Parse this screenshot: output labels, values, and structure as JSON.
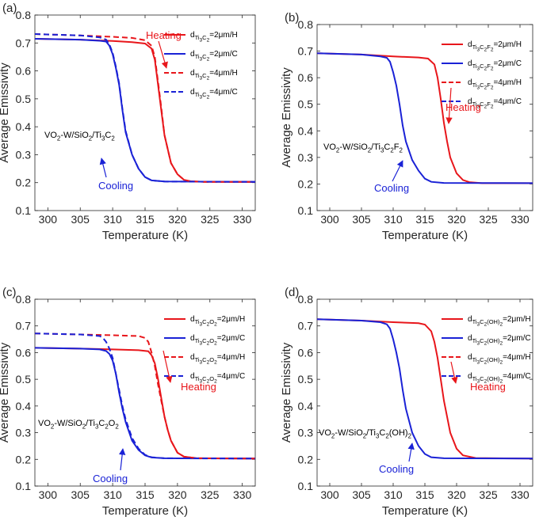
{
  "colors": {
    "heating": "#e8161b",
    "cooling": "#1a22d6",
    "axis": "#262626"
  },
  "chart_data": [
    {
      "type": "line",
      "panel": "(a)",
      "xlabel": "Temperature (K)",
      "ylabel": "Average Emissivity",
      "xlim": [
        298,
        332
      ],
      "ylim": [
        0.1,
        0.8
      ],
      "xticks": [
        "300",
        "305",
        "310",
        "315",
        "320",
        "325",
        "330"
      ],
      "yticks": [
        "0.1",
        "0.2",
        "0.3",
        "0.4",
        "0.5",
        "0.6",
        "0.7",
        "0.8"
      ],
      "sample": [
        "VO",
        "2",
        "-W/SiO",
        "2",
        "/Ti",
        "3",
        "C",
        "2"
      ],
      "mxene": [
        "Ti",
        "3",
        "C",
        "2"
      ],
      "legend": [
        "=2μm/H",
        "=2μm/C",
        "=4μm/H",
        "=4μm/C"
      ],
      "heating_label": "Heating",
      "cooling_label": "Cooling",
      "series": [
        {
          "name": "2μm/H",
          "style": "solid",
          "color": "heating",
          "x": [
            298,
            305,
            310,
            313,
            315,
            316,
            316.5,
            317,
            317.5,
            318,
            319,
            320,
            321,
            322,
            324,
            332
          ],
          "y": [
            0.715,
            0.712,
            0.707,
            0.703,
            0.698,
            0.68,
            0.64,
            0.55,
            0.46,
            0.37,
            0.27,
            0.23,
            0.21,
            0.205,
            0.203,
            0.203
          ]
        },
        {
          "name": "2μm/C",
          "style": "solid",
          "color": "cooling",
          "x": [
            298,
            305,
            308,
            309,
            309.5,
            310,
            310.5,
            311,
            311.5,
            312,
            313,
            314,
            315,
            316,
            318,
            332
          ],
          "y": [
            0.715,
            0.712,
            0.708,
            0.705,
            0.69,
            0.66,
            0.61,
            0.55,
            0.46,
            0.38,
            0.3,
            0.25,
            0.22,
            0.208,
            0.204,
            0.203
          ]
        },
        {
          "name": "4μm/H",
          "style": "dashed",
          "color": "heating",
          "x": [
            298,
            305,
            310,
            313,
            315,
            316,
            316.5,
            317,
            317.5,
            318,
            319,
            320,
            321,
            322,
            324,
            332
          ],
          "y": [
            0.732,
            0.727,
            0.722,
            0.718,
            0.71,
            0.69,
            0.65,
            0.56,
            0.47,
            0.37,
            0.27,
            0.23,
            0.21,
            0.205,
            0.203,
            0.203
          ]
        },
        {
          "name": "4μm/C",
          "style": "dashed",
          "color": "cooling",
          "x": [
            298,
            305,
            308,
            309,
            309.5,
            310,
            310.5,
            311,
            311.5,
            312,
            313,
            314,
            315,
            316,
            318,
            332
          ],
          "y": [
            0.732,
            0.727,
            0.72,
            0.712,
            0.695,
            0.665,
            0.615,
            0.555,
            0.465,
            0.385,
            0.3,
            0.25,
            0.22,
            0.208,
            0.204,
            0.203
          ]
        }
      ]
    },
    {
      "type": "line",
      "panel": "(b)",
      "xlabel": "Temperature (K)",
      "ylabel": "Average Emissivity",
      "xlim": [
        298,
        332
      ],
      "ylim": [
        0.1,
        0.8
      ],
      "xticks": [
        "300",
        "305",
        "310",
        "315",
        "320",
        "325",
        "330"
      ],
      "yticks": [
        "0.1",
        "0.2",
        "0.3",
        "0.4",
        "0.5",
        "0.6",
        "0.7",
        "0.8"
      ],
      "sample": [
        "VO",
        "2",
        "-W/SiO",
        "2",
        "/Ti",
        "3",
        "C",
        "2",
        "F",
        "2"
      ],
      "mxene": [
        "Ti",
        "3",
        "C",
        "2",
        "F",
        "2"
      ],
      "legend": [
        "=2μm/H",
        "=2μm/C",
        "=4μm/H",
        "=4μm/C"
      ],
      "heating_label": "Heating",
      "cooling_label": "Cooling",
      "series": [
        {
          "name": "2μm/H",
          "style": "solid",
          "color": "heating",
          "x": [
            298,
            305,
            310,
            314,
            315.5,
            316.5,
            317,
            317.5,
            318,
            318.5,
            319,
            320,
            321,
            322,
            324,
            332
          ],
          "y": [
            0.692,
            0.687,
            0.68,
            0.676,
            0.672,
            0.65,
            0.6,
            0.52,
            0.43,
            0.36,
            0.3,
            0.24,
            0.215,
            0.207,
            0.203,
            0.203
          ]
        },
        {
          "name": "2μm/C",
          "style": "solid",
          "color": "cooling",
          "x": [
            298,
            305,
            308,
            309,
            309.5,
            310,
            310.5,
            311,
            311.5,
            312,
            313,
            314,
            315,
            316,
            318,
            332
          ],
          "y": [
            0.692,
            0.687,
            0.68,
            0.675,
            0.66,
            0.62,
            0.57,
            0.5,
            0.42,
            0.36,
            0.29,
            0.25,
            0.22,
            0.208,
            0.204,
            0.203
          ]
        }
      ]
    },
    {
      "type": "line",
      "panel": "(c)",
      "xlabel": "Temperature (K)",
      "ylabel": "Average Emissivity",
      "xlim": [
        298,
        332
      ],
      "ylim": [
        0.1,
        0.8
      ],
      "xticks": [
        "300",
        "305",
        "310",
        "315",
        "320",
        "325",
        "330"
      ],
      "yticks": [
        "0.1",
        "0.2",
        "0.3",
        "0.4",
        "0.5",
        "0.6",
        "0.7",
        "0.8"
      ],
      "sample": [
        "VO",
        "2",
        "-W/SiO",
        "2",
        "/Ti",
        "3",
        "C",
        "2",
        "O",
        "2"
      ],
      "mxene": [
        "Ti",
        "3",
        "C",
        "2",
        "O",
        "2"
      ],
      "legend": [
        "=2μm/H",
        "=2μm/C",
        "=4μm/H",
        "=4μm/C"
      ],
      "heating_label": "Heating",
      "cooling_label": "Cooling",
      "series": [
        {
          "name": "2μm/H",
          "style": "solid",
          "color": "heating",
          "x": [
            298,
            305,
            310,
            314,
            315.5,
            316,
            316.5,
            317,
            317.5,
            318,
            318.5,
            319,
            320,
            321,
            323,
            332
          ],
          "y": [
            0.618,
            0.615,
            0.612,
            0.609,
            0.605,
            0.59,
            0.56,
            0.5,
            0.43,
            0.36,
            0.31,
            0.27,
            0.225,
            0.21,
            0.204,
            0.203
          ]
        },
        {
          "name": "2μm/C",
          "style": "solid",
          "color": "cooling",
          "x": [
            298,
            305,
            308,
            309,
            309.5,
            310,
            310.5,
            311,
            311.5,
            312,
            313,
            314,
            315,
            316,
            318,
            332
          ],
          "y": [
            0.618,
            0.615,
            0.612,
            0.606,
            0.595,
            0.57,
            0.52,
            0.45,
            0.39,
            0.34,
            0.27,
            0.235,
            0.215,
            0.207,
            0.204,
            0.203
          ]
        },
        {
          "name": "4μm/H",
          "style": "dashed",
          "color": "heating",
          "x": [
            298,
            305,
            310,
            314,
            315,
            315.5,
            316,
            316.5,
            317,
            317.5,
            318,
            318.5,
            319,
            320,
            321,
            323,
            332
          ],
          "y": [
            0.672,
            0.668,
            0.665,
            0.662,
            0.655,
            0.64,
            0.6,
            0.55,
            0.48,
            0.42,
            0.36,
            0.31,
            0.27,
            0.225,
            0.21,
            0.204,
            0.203
          ]
        },
        {
          "name": "4μm/C",
          "style": "dashed",
          "color": "cooling",
          "x": [
            298,
            305,
            308,
            308.5,
            309,
            309.5,
            310,
            310.5,
            311,
            311.5,
            312,
            313,
            314,
            315,
            316,
            318,
            332
          ],
          "y": [
            0.672,
            0.668,
            0.662,
            0.655,
            0.64,
            0.615,
            0.58,
            0.52,
            0.46,
            0.4,
            0.35,
            0.28,
            0.24,
            0.217,
            0.208,
            0.204,
            0.203
          ]
        }
      ]
    },
    {
      "type": "line",
      "panel": "(d)",
      "xlabel": "Temperature (K)",
      "ylabel": "Average Emissivity",
      "xlim": [
        298,
        332
      ],
      "ylim": [
        0.1,
        0.8
      ],
      "xticks": [
        "300",
        "305",
        "310",
        "315",
        "320",
        "325",
        "330"
      ],
      "yticks": [
        "0.1",
        "0.2",
        "0.3",
        "0.4",
        "0.5",
        "0.6",
        "0.7",
        "0.8"
      ],
      "sample": [
        "VO",
        "2",
        "-W/SiO",
        "2",
        "/Ti",
        "3",
        "C",
        "2",
        "(OH)",
        "2"
      ],
      "mxene": [
        "Ti",
        "3",
        "C",
        "2",
        "(OH)",
        "2"
      ],
      "legend": [
        "=2μm/H",
        "=2μm/C",
        "=4μm/H",
        "=4μm/C"
      ],
      "heating_label": "Heating",
      "cooling_label": "Cooling",
      "series": [
        {
          "name": "2μm/H",
          "style": "solid",
          "color": "heating",
          "x": [
            298,
            305,
            310,
            314,
            315,
            316,
            316.5,
            317,
            317.5,
            318,
            318.5,
            319,
            320,
            321,
            323,
            332
          ],
          "y": [
            0.725,
            0.72,
            0.714,
            0.71,
            0.705,
            0.68,
            0.64,
            0.58,
            0.5,
            0.42,
            0.36,
            0.3,
            0.24,
            0.215,
            0.205,
            0.203
          ]
        },
        {
          "name": "2μm/C",
          "style": "solid",
          "color": "cooling",
          "x": [
            298,
            305,
            308,
            309,
            309.5,
            310,
            310.5,
            311,
            311.5,
            312,
            313,
            314,
            315,
            316,
            318,
            332
          ],
          "y": [
            0.725,
            0.72,
            0.714,
            0.706,
            0.69,
            0.65,
            0.6,
            0.54,
            0.46,
            0.39,
            0.3,
            0.25,
            0.22,
            0.208,
            0.204,
            0.203
          ]
        }
      ]
    }
  ]
}
